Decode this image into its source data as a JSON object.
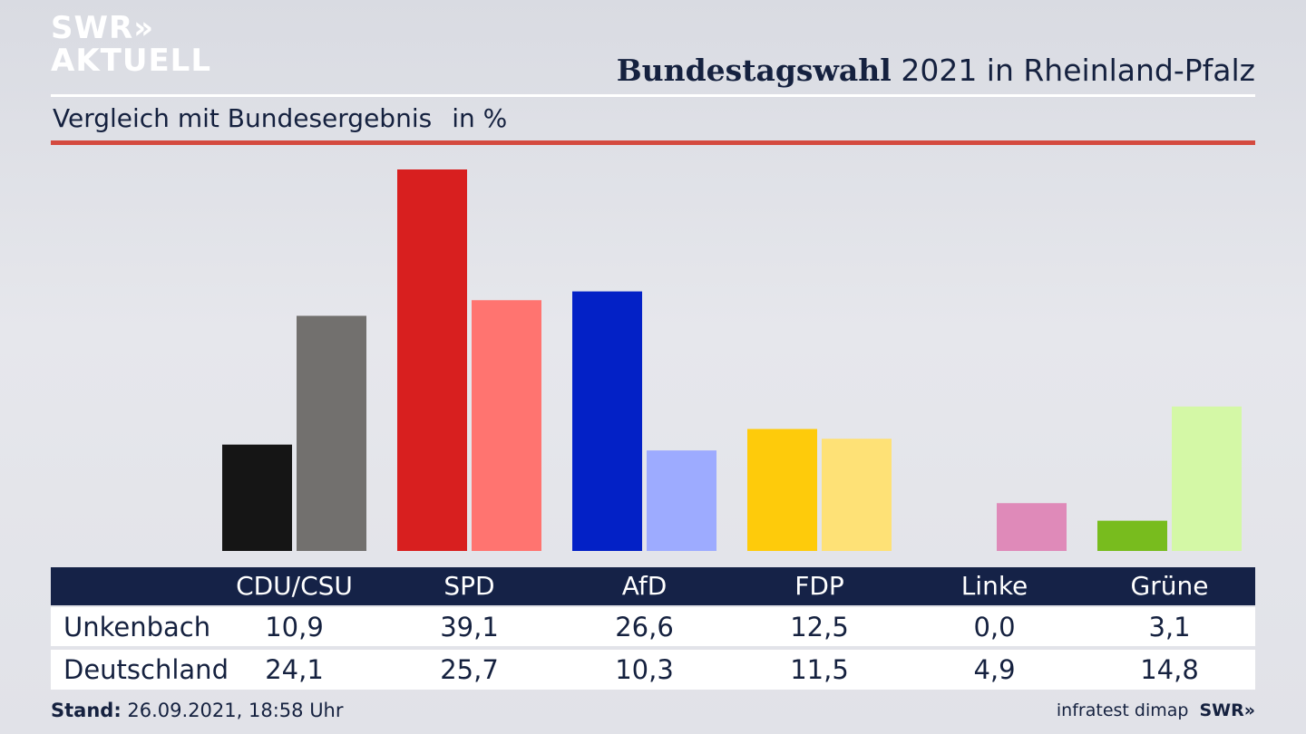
{
  "brand": {
    "logo_line1": "SWR»",
    "logo_line2": "AKTUELL",
    "footer_logo": "SWR»"
  },
  "header": {
    "title_bold": "Bundestagswahl",
    "title_rest": "2021 in Rheinland-Pfalz"
  },
  "subtitle": {
    "text": "Vergleich mit Bundesergebnis",
    "unit": "in %"
  },
  "footer": {
    "stand_label": "Stand:",
    "stand_value": "26.09.2021, 18:58 Uhr",
    "source": "infratest dimap"
  },
  "chart_data": {
    "type": "bar",
    "title": "Bundestagswahl 2021 in Rheinland-Pfalz",
    "subtitle": "Vergleich mit Bundesergebnis in %",
    "categories": [
      "CDU/CSU",
      "SPD",
      "AfD",
      "FDP",
      "Linke",
      "Grüne"
    ],
    "series": [
      {
        "name": "Unkenbach",
        "values": [
          10.9,
          39.1,
          26.6,
          12.5,
          0.0,
          3.1
        ],
        "labels": [
          "10,9",
          "39,1",
          "26,6",
          "12,5",
          "0,0",
          "3,1"
        ],
        "colors": [
          "#151515",
          "#d81f1f",
          "#0321c6",
          "#fecb0b",
          "#aa2472",
          "#78bc1e"
        ]
      },
      {
        "name": "Deutschland",
        "values": [
          24.1,
          25.7,
          10.3,
          11.5,
          4.9,
          14.8
        ],
        "labels": [
          "24,1",
          "25,7",
          "10,3",
          "11,5",
          "4,9",
          "14,8"
        ],
        "colors": [
          "#72706e",
          "#ff7470",
          "#9dabff",
          "#fee176",
          "#df8ab9",
          "#d4f8a6"
        ]
      }
    ],
    "ylim": [
      0,
      39.1
    ],
    "grid": false,
    "legend": "table-below"
  }
}
